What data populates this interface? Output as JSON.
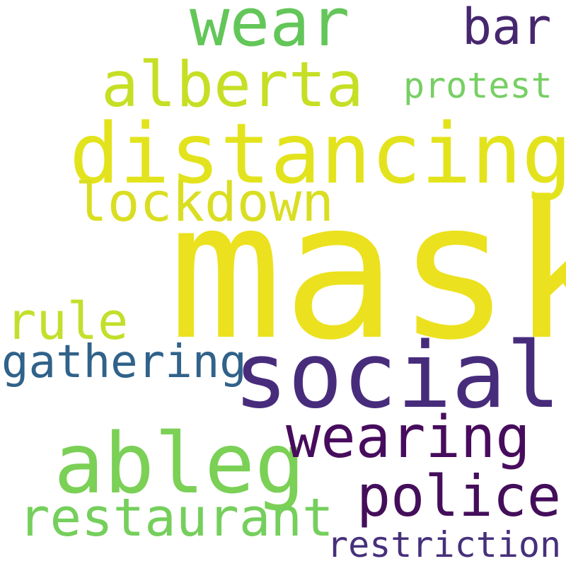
{
  "words": {
    "mask": {
      "text": "mask",
      "color": "#ece11e"
    },
    "distancing": {
      "text": "distancing",
      "color": "#e3e31d"
    },
    "social": {
      "text": "social",
      "color": "#482c7c"
    },
    "ableg": {
      "text": "ableg",
      "color": "#7bd056"
    },
    "wear": {
      "text": "wear",
      "color": "#63c659"
    },
    "alberta": {
      "text": "alberta",
      "color": "#c6df25"
    },
    "lockdown": {
      "text": "lockdown",
      "color": "#dade22"
    },
    "wearing": {
      "text": "wearing",
      "color": "#470c5d"
    },
    "police": {
      "text": "police",
      "color": "#440e5a"
    },
    "restaurant": {
      "text": "restaurant",
      "color": "#75cf5c"
    },
    "rule": {
      "text": "rule",
      "color": "#c3df2b"
    },
    "gathering": {
      "text": "gathering",
      "color": "#30628a"
    },
    "bar": {
      "text": "bar",
      "color": "#46276f"
    },
    "protest": {
      "text": "protest",
      "color": "#77cf64"
    },
    "restriction": {
      "text": "restriction",
      "color": "#46307b"
    }
  }
}
